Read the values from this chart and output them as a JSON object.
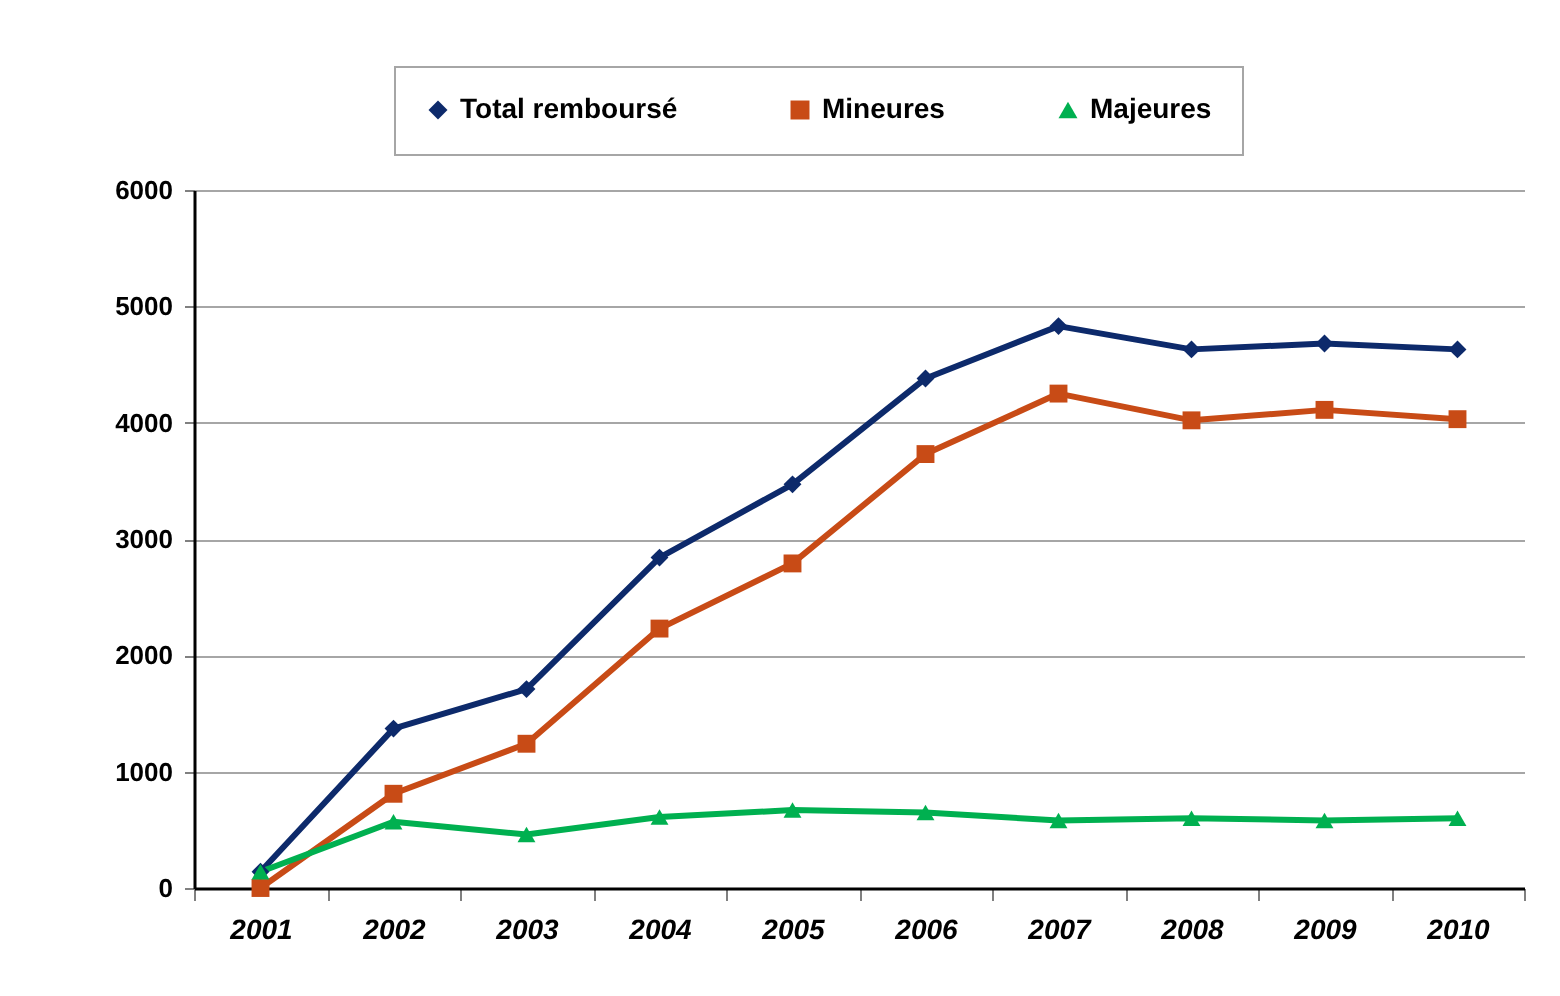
{
  "chart_data": {
    "type": "line",
    "categories": [
      "2001",
      "2002",
      "2003",
      "2004",
      "2005",
      "2006",
      "2007",
      "2008",
      "2009",
      "2010"
    ],
    "series": [
      {
        "name": "Total remboursé",
        "color": "#0d2a6b",
        "marker": "diamond",
        "values": [
          140,
          1370,
          1710,
          2840,
          3470,
          4380,
          4830,
          4630,
          4680,
          4630
        ]
      },
      {
        "name": "Mineures",
        "color": "#c84b16",
        "marker": "square",
        "values": [
          0,
          810,
          1240,
          2230,
          2790,
          3730,
          4250,
          4020,
          4110,
          4030
        ]
      },
      {
        "name": "Majeures",
        "color": "#00b050",
        "marker": "triangle",
        "values": [
          140,
          570,
          460,
          610,
          670,
          650,
          580,
          600,
          580,
          600
        ]
      }
    ],
    "ylim": [
      0,
      6000
    ],
    "yticks": [
      0,
      1000,
      2000,
      3000,
      4000,
      5000,
      6000
    ],
    "grid": "y",
    "legend": "top",
    "line_style": "solid"
  }
}
